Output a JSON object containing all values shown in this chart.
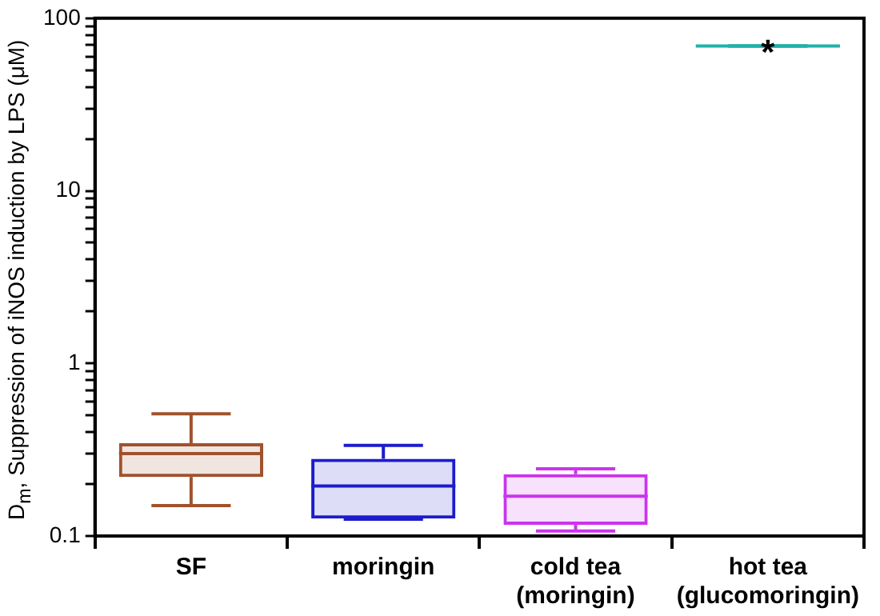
{
  "chart_data": {
    "type": "box",
    "ylabel": "D$_{m}$, Suppression of iNOS induction by LPS (μM)",
    "categories": [
      "SF",
      "moringin",
      "cold tea\n(moringin)",
      "hot tea\n(glucomoringin)"
    ],
    "boxes": [
      {
        "low": 0.15,
        "q1": 0.22,
        "median": 0.3,
        "q3": 0.345,
        "high": 0.51
      },
      {
        "low": 0.125,
        "q1": 0.126,
        "median": 0.195,
        "q3": 0.28,
        "high": 0.335
      },
      {
        "low": 0.107,
        "q1": 0.116,
        "median": 0.17,
        "q3": 0.228,
        "high": 0.245
      },
      {
        "low": 69,
        "q1": 69,
        "median": 69,
        "q3": 69,
        "high": 69
      }
    ],
    "colors": [
      "#a0522d",
      "#1c1ccc",
      "#cc33ee",
      "#20b2aa"
    ],
    "log": "y",
    "ylim": [
      0.1,
      100
    ],
    "yticks": [
      0.1,
      {
        "value": 0.2,
        "label": null
      },
      {
        "value": 0.3,
        "label": null
      },
      {
        "value": 0.4,
        "label": null
      },
      {
        "value": 0.5,
        "label": null
      },
      {
        "value": 0.6,
        "label": null
      },
      {
        "value": 0.7,
        "label": null
      },
      {
        "value": 0.8,
        "label": null
      },
      {
        "value": 0.9,
        "label": null
      },
      1,
      {
        "value": 2,
        "label": null
      },
      {
        "value": 3,
        "label": null
      },
      {
        "value": 4,
        "label": null
      },
      {
        "value": 5,
        "label": null
      },
      {
        "value": 6,
        "label": null
      },
      {
        "value": 7,
        "label": null
      },
      {
        "value": 8,
        "label": null
      },
      {
        "value": 9,
        "label": null
      },
      10,
      {
        "value": 20,
        "label": null
      },
      {
        "value": 30,
        "label": null
      },
      {
        "value": 40,
        "label": null
      },
      {
        "value": 50,
        "label": null
      },
      {
        "value": 60,
        "label": null
      },
      {
        "value": 70,
        "label": null
      },
      {
        "value": 80,
        "label": null
      },
      {
        "value": 90,
        "label": null
      },
      100
    ],
    "grid": false,
    "legend": false,
    "annotations": [
      {
        "text": "*",
        "x": "hot tea\n(glucomoringin)",
        "y": 69
      }
    ]
  }
}
